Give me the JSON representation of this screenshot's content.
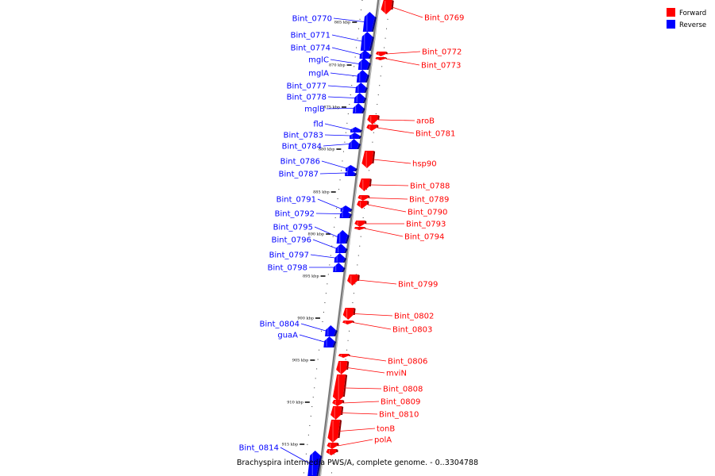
{
  "legend": {
    "forward_label": "Forward",
    "reverse_label": "Reverse",
    "forward_color": "#ff0000",
    "reverse_color": "#0000ff"
  },
  "footer": "Brachyspira intermedia PWS/A, complete genome. - 0..3304788",
  "ticks": [
    "865 kbp",
    "870 kbp",
    "875 kbp",
    "880 kbp",
    "885 kbp",
    "890 kbp",
    "895 kbp",
    "900 kbp",
    "905 kbp",
    "910 kbp",
    "915 kbp"
  ],
  "reverse_genes": [
    "Bint_0770",
    "Bint_0771",
    "Bint_0774",
    "mglC",
    "mglA",
    "Bint_0777",
    "Bint_0778",
    "mglB",
    "fld",
    "Bint_0783",
    "Bint_0784",
    "Bint_0786",
    "Bint_0787",
    "Bint_0791",
    "Bint_0792",
    "Bint_0795",
    "Bint_0796",
    "Bint_0797",
    "Bint_0798",
    "Bint_0804",
    "guaA",
    "Bint_0814"
  ],
  "forward_genes": [
    "Bint_0769",
    "Bint_0772",
    "Bint_0773",
    "aroB",
    "Bint_0781",
    "hsp90",
    "Bint_0788",
    "Bint_0789",
    "Bint_0790",
    "Bint_0793",
    "Bint_0794",
    "Bint_0799",
    "Bint_0802",
    "Bint_0803",
    "Bint_0806",
    "mviN",
    "Bint_0808",
    "Bint_0809",
    "Bint_0810",
    "tonB",
    "polA"
  ]
}
